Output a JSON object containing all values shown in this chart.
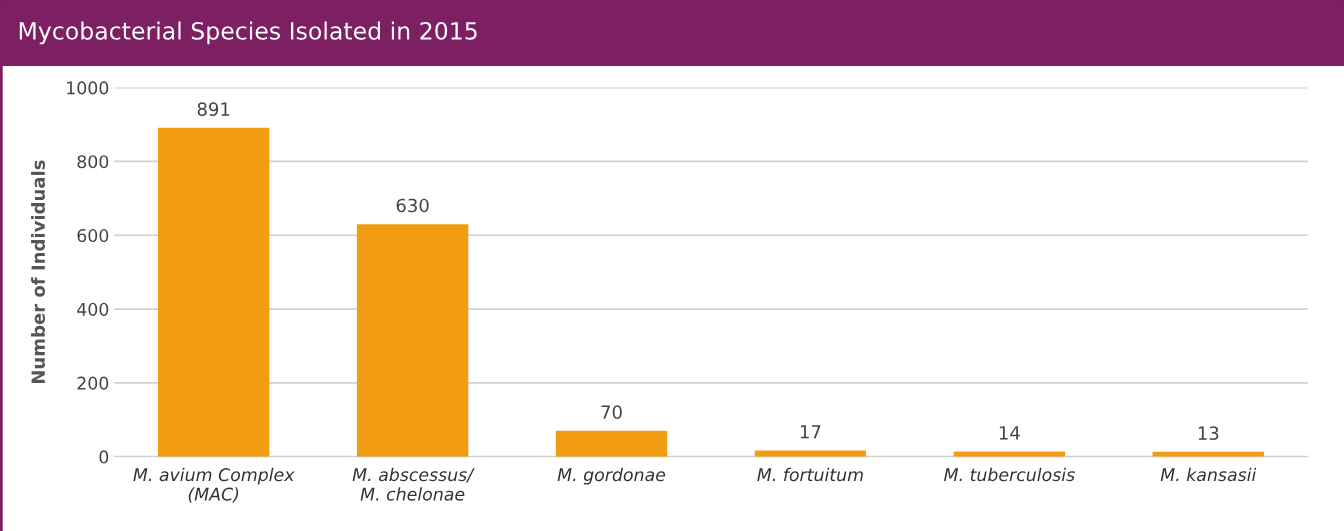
{
  "chart_data": {
    "type": "bar",
    "title": "Mycobacterial Species Isolated in 2015",
    "ylabel": "Number of Individuals",
    "categories": [
      "M. avium Complex\n(MAC)",
      "M. abscessus/\nM. chelonae",
      "M. gordonae",
      "M. fortuitum",
      "M. tuberculosis",
      "M. kansasii"
    ],
    "values": [
      891,
      630,
      70,
      17,
      14,
      13
    ],
    "color": "#f29c13",
    "ylim": [
      0,
      1000
    ],
    "yticks": [
      0,
      200,
      400,
      600,
      800,
      1000
    ],
    "grid": "y",
    "data_labels": true
  }
}
